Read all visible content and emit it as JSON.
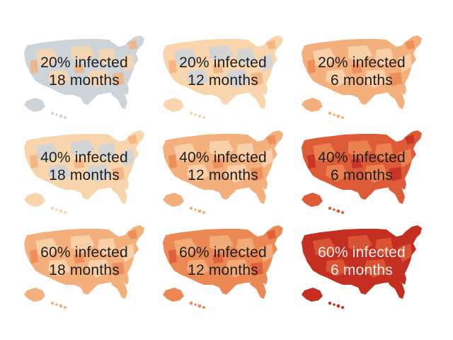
{
  "colors": {
    "none": "#cdd4d9",
    "level1": "#f8d5ad",
    "level2": "#f3b07d",
    "level3": "#ec8853",
    "level4": "#dd5b37",
    "level5": "#c52f22"
  },
  "maps": [
    {
      "infected": "20% infected",
      "duration": "18 months",
      "base": "none",
      "patch": "level1",
      "patch2": "level2"
    },
    {
      "infected": "20% infected",
      "duration": "12 months",
      "base": "level1",
      "patch": "none",
      "patch2": "level2"
    },
    {
      "infected": "20% infected",
      "duration": "6 months",
      "base": "level2",
      "patch": "level1",
      "patch2": "level3"
    },
    {
      "infected": "40% infected",
      "duration": "18 months",
      "base": "level1",
      "patch": "none",
      "patch2": "level2"
    },
    {
      "infected": "40% infected",
      "duration": "12 months",
      "base": "level2",
      "patch": "level1",
      "patch2": "level3"
    },
    {
      "infected": "40% infected",
      "duration": "6 months",
      "base": "level4",
      "patch": "level3",
      "patch2": "level5"
    },
    {
      "infected": "60% infected",
      "duration": "18 months",
      "base": "level2",
      "patch": "level1",
      "patch2": "level3"
    },
    {
      "infected": "60% infected",
      "duration": "12 months",
      "base": "level3",
      "patch": "level2",
      "patch2": "level4"
    },
    {
      "infected": "60% infected",
      "duration": "6 months",
      "base": "level5",
      "patch": "level4",
      "patch2": "level5"
    }
  ]
}
